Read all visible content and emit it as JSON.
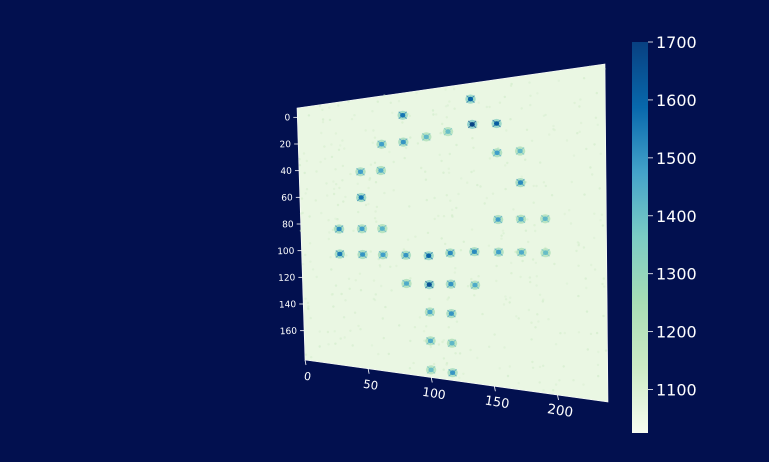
{
  "chart_data": {
    "type": "heatmap",
    "title": "",
    "xlabel": "",
    "ylabel": "",
    "colormap": "GnBu",
    "colors": [
      "#f7fcf0",
      "#ccebc5",
      "#a8ddb5",
      "#7bccc4",
      "#43a2ca",
      "#0868ac",
      "#084081"
    ],
    "background": "#02104f",
    "x_range": [
      0,
      240
    ],
    "y_range": [
      0,
      180
    ],
    "y_reversed": true,
    "x_ticks": [
      "0",
      "50",
      "100",
      "150",
      "200"
    ],
    "y_ticks": [
      "0",
      "20",
      "40",
      "60",
      "80",
      "100",
      "120",
      "140",
      "160"
    ],
    "colorbar": {
      "range": [
        1025,
        1700
      ],
      "ticks": [
        "1100",
        "1200",
        "1300",
        "1400",
        "1500",
        "1600",
        "1700"
      ]
    },
    "baseline_value": 1060,
    "spots": [
      {
        "x": 82,
        "y": 8,
        "value": 1560
      },
      {
        "x": 135,
        "y": 3,
        "value": 1600
      },
      {
        "x": 65,
        "y": 26,
        "value": 1480
      },
      {
        "x": 82,
        "y": 26,
        "value": 1500
      },
      {
        "x": 100,
        "y": 24,
        "value": 1420
      },
      {
        "x": 117,
        "y": 22,
        "value": 1400
      },
      {
        "x": 136,
        "y": 19,
        "value": 1690
      },
      {
        "x": 155,
        "y": 20,
        "value": 1620
      },
      {
        "x": 48,
        "y": 44,
        "value": 1480
      },
      {
        "x": 64,
        "y": 44,
        "value": 1450
      },
      {
        "x": 155,
        "y": 38,
        "value": 1480
      },
      {
        "x": 173,
        "y": 38,
        "value": 1420
      },
      {
        "x": 48,
        "y": 62,
        "value": 1560
      },
      {
        "x": 173,
        "y": 57,
        "value": 1520
      },
      {
        "x": 30,
        "y": 84,
        "value": 1520
      },
      {
        "x": 48,
        "y": 84,
        "value": 1480
      },
      {
        "x": 64,
        "y": 84,
        "value": 1430
      },
      {
        "x": 155,
        "y": 79,
        "value": 1480
      },
      {
        "x": 173,
        "y": 79,
        "value": 1450
      },
      {
        "x": 192,
        "y": 79,
        "value": 1420
      },
      {
        "x": 30,
        "y": 102,
        "value": 1550
      },
      {
        "x": 48,
        "y": 102,
        "value": 1500
      },
      {
        "x": 64,
        "y": 102,
        "value": 1480
      },
      {
        "x": 82,
        "y": 102,
        "value": 1500
      },
      {
        "x": 100,
        "y": 102,
        "value": 1600
      },
      {
        "x": 117,
        "y": 100,
        "value": 1520
      },
      {
        "x": 136,
        "y": 99,
        "value": 1520
      },
      {
        "x": 155,
        "y": 99,
        "value": 1480
      },
      {
        "x": 173,
        "y": 99,
        "value": 1450
      },
      {
        "x": 192,
        "y": 99,
        "value": 1400
      },
      {
        "x": 82,
        "y": 121,
        "value": 1450
      },
      {
        "x": 100,
        "y": 121,
        "value": 1650
      },
      {
        "x": 117,
        "y": 120,
        "value": 1500
      },
      {
        "x": 136,
        "y": 120,
        "value": 1450
      },
      {
        "x": 100,
        "y": 139,
        "value": 1460
      },
      {
        "x": 117,
        "y": 139,
        "value": 1500
      },
      {
        "x": 100,
        "y": 158,
        "value": 1450
      },
      {
        "x": 117,
        "y": 158,
        "value": 1420
      },
      {
        "x": 100,
        "y": 177,
        "value": 1400
      },
      {
        "x": 117,
        "y": 177,
        "value": 1500
      }
    ]
  }
}
